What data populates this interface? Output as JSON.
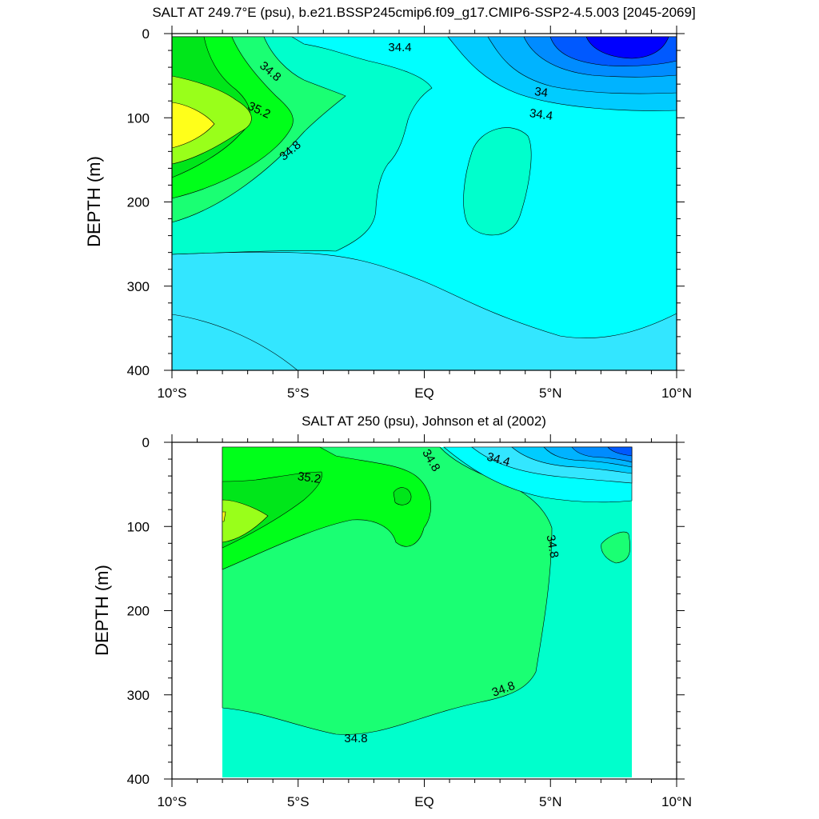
{
  "chart_data": [
    {
      "type": "contour",
      "title": "SALT AT 249.7°E (psu), b.e21.BSSP245cmip6.f09_g17.CMIP6-SSP2-4.5.003 [2045-2069]",
      "ylabel": "DEPTH (m)",
      "xlabel": "",
      "x_ticks": [
        "10°S",
        "5°S",
        "EQ",
        "5°N",
        "10°N"
      ],
      "x_tick_values": [
        -10,
        -5,
        0,
        5,
        10
      ],
      "y_ticks": [
        "0",
        "100",
        "200",
        "300",
        "400"
      ],
      "y_tick_values": [
        0,
        100,
        200,
        300,
        400
      ],
      "xlim": [
        -10,
        10
      ],
      "ylim": [
        400,
        0
      ],
      "contour_labels": [
        "34.4",
        "34.8",
        "35.2",
        "34.8",
        "34",
        "34.4"
      ],
      "salinity_features": [
        {
          "region": "maximum core near 9°S",
          "depth_m": 100,
          "value": 35.4
        },
        {
          "region": "fresh surface pool near 8°N",
          "depth_m": 10,
          "value": 33.2
        },
        {
          "region": "subsurface 34.8 lens near 3°N",
          "depth_m": 190,
          "value": 34.8
        }
      ]
    },
    {
      "type": "contour",
      "title": "SALT AT 250 (psu), Johnson et al (2002)",
      "ylabel": "DEPTH (m)",
      "xlabel": "",
      "x_ticks": [
        "10°S",
        "5°S",
        "EQ",
        "5°N",
        "10°N"
      ],
      "x_tick_values": [
        -10,
        -5,
        0,
        5,
        10
      ],
      "y_ticks": [
        "0",
        "100",
        "200",
        "300",
        "400"
      ],
      "y_tick_values": [
        0,
        100,
        200,
        300,
        400
      ],
      "xlim": [
        -10,
        10
      ],
      "ylim": [
        400,
        0
      ],
      "data_x_range": [
        -8,
        8.2
      ],
      "contour_labels": [
        "35.2",
        "34.8",
        "34.4",
        "34.8",
        "34.8",
        "34.8"
      ],
      "salinity_features": [
        {
          "region": "maximum core near 8°S",
          "depth_m": 85,
          "value": 35.3
        },
        {
          "region": "fresh surface pool near 8°N",
          "depth_m": 5,
          "value": 33.8
        },
        {
          "region": "34.8 water mass",
          "depth_m": 200,
          "value": 34.8
        }
      ]
    }
  ],
  "colors": {
    "yellow": "#ffff1a",
    "lime": "#99ff1a",
    "green": "#00ff1a",
    "light_green": "#1aff73",
    "aqua_green": "#00ffcc",
    "cyan": "#00ffff",
    "sky": "#33e6ff",
    "blue1": "#00ccff",
    "blue2": "#00b3ff",
    "blue3": "#008cff",
    "blue4": "#0059ff",
    "blue5": "#0000ff"
  }
}
